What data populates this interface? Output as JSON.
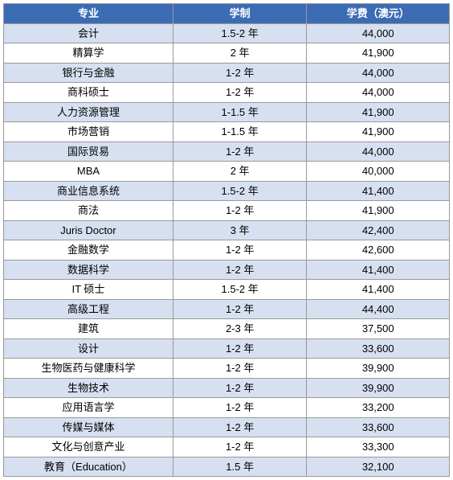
{
  "table": {
    "header_bg": "#3b6cb3",
    "header_color": "#ffffff",
    "row_odd_bg": "#d6e0f0",
    "row_even_bg": "#ffffff",
    "border_color": "#999999",
    "font_size": 13,
    "columns": [
      {
        "key": "major",
        "label": "专业"
      },
      {
        "key": "duration",
        "label": "学制"
      },
      {
        "key": "fee",
        "label": "学费（澳元）"
      }
    ],
    "rows": [
      {
        "major": "会计",
        "duration": "1.5-2 年",
        "fee": "44,000"
      },
      {
        "major": "精算学",
        "duration": "2 年",
        "fee": "41,900"
      },
      {
        "major": "银行与金融",
        "duration": "1-2 年",
        "fee": "44,000"
      },
      {
        "major": "商科硕士",
        "duration": "1-2 年",
        "fee": "44,000"
      },
      {
        "major": "人力资源管理",
        "duration": "1-1.5 年",
        "fee": "41,900"
      },
      {
        "major": "市场营销",
        "duration": "1-1.5 年",
        "fee": "41,900"
      },
      {
        "major": "国际贸易",
        "duration": "1-2 年",
        "fee": "44,000"
      },
      {
        "major": "MBA",
        "duration": "2 年",
        "fee": "40,000"
      },
      {
        "major": "商业信息系统",
        "duration": "1.5-2 年",
        "fee": "41,400"
      },
      {
        "major": "商法",
        "duration": "1-2 年",
        "fee": "41,900"
      },
      {
        "major": "Juris Doctor",
        "duration": "3 年",
        "fee": "42,400"
      },
      {
        "major": "金融数学",
        "duration": "1-2 年",
        "fee": "42,600"
      },
      {
        "major": "数据科学",
        "duration": "1-2 年",
        "fee": "41,400"
      },
      {
        "major": "IT 硕士",
        "duration": "1.5-2 年",
        "fee": "41,400"
      },
      {
        "major": "高级工程",
        "duration": "1-2 年",
        "fee": "44,400"
      },
      {
        "major": "建筑",
        "duration": "2-3 年",
        "fee": "37,500"
      },
      {
        "major": "设计",
        "duration": "1-2 年",
        "fee": "33,600"
      },
      {
        "major": "生物医药与健康科学",
        "duration": "1-2 年",
        "fee": "39,900"
      },
      {
        "major": "生物技术",
        "duration": "1-2 年",
        "fee": "39,900"
      },
      {
        "major": "应用语言学",
        "duration": "1-2 年",
        "fee": "33,200"
      },
      {
        "major": "传媒与媒体",
        "duration": "1-2 年",
        "fee": "33,600"
      },
      {
        "major": "文化与创意产业",
        "duration": "1-2 年",
        "fee": "33,300"
      },
      {
        "major": "教育（Education）",
        "duration": "1.5 年",
        "fee": "32,100"
      }
    ]
  }
}
